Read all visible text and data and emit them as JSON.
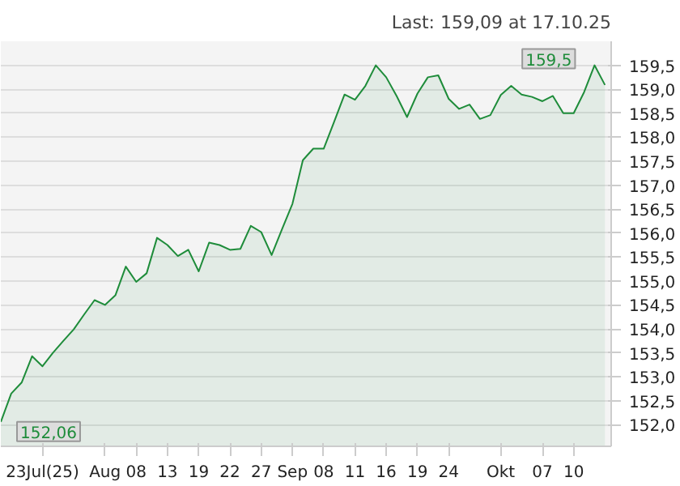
{
  "chart_data": {
    "type": "area",
    "title": "Last: 159,09 at 17.10.25",
    "categories": [
      null,
      null,
      null,
      null,
      "23Jul(25)",
      null,
      null,
      null,
      null,
      null,
      "Aug",
      null,
      null,
      "08",
      null,
      null,
      "13",
      null,
      null,
      "19",
      null,
      null,
      "22",
      null,
      null,
      "27",
      null,
      null,
      "Sep",
      null,
      null,
      "08",
      null,
      null,
      "11",
      null,
      null,
      "16",
      null,
      null,
      "19",
      null,
      null,
      "24",
      null,
      null,
      null,
      null,
      "Okt",
      null,
      null,
      null,
      "07",
      null,
      null,
      "10",
      null,
      null,
      null
    ],
    "series": [
      {
        "color": "#1e8c3a",
        "values": [
          152.06,
          152.65,
          152.88,
          153.43,
          153.22,
          153.5,
          153.75,
          153.99,
          154.3,
          154.6,
          154.5,
          154.7,
          155.3,
          154.98,
          155.16,
          155.9,
          155.75,
          155.52,
          155.65,
          155.2,
          155.8,
          155.75,
          155.65,
          155.67,
          156.15,
          156.02,
          155.54,
          156.08,
          156.61,
          157.52,
          157.76,
          157.76,
          158.32,
          158.89,
          158.78,
          159.07,
          159.5,
          159.25,
          158.86,
          158.42,
          158.91,
          159.25,
          159.29,
          158.8,
          158.59,
          158.68,
          158.38,
          158.46,
          158.88,
          159.07,
          158.89,
          158.84,
          158.75,
          158.86,
          158.5,
          158.5,
          158.94,
          159.5,
          159.09
        ]
      }
    ],
    "ylim": [
      151.55,
      160.0
    ],
    "yticks": [
      {
        "value": 152,
        "label": "152,0"
      },
      {
        "value": 152.5,
        "label": "152,5"
      },
      {
        "value": 153,
        "label": "153,0"
      },
      {
        "value": 153.5,
        "label": "153,5"
      },
      {
        "value": 154,
        "label": "154,0"
      },
      {
        "value": 154.5,
        "label": "154,5"
      },
      {
        "value": 155,
        "label": "155,0"
      },
      {
        "value": 155.5,
        "label": "155,5"
      },
      {
        "value": 156,
        "label": "156,0"
      },
      {
        "value": 156.5,
        "label": "156,5"
      },
      {
        "value": 157,
        "label": "157,0"
      },
      {
        "value": 157.5,
        "label": "157,5"
      },
      {
        "value": 158,
        "label": "158,0"
      },
      {
        "value": 158.5,
        "label": "158,5"
      },
      {
        "value": 159,
        "label": "159,0"
      },
      {
        "value": 159.5,
        "label": "159,5"
      }
    ],
    "grid": "y",
    "annotations": [
      "159,5",
      "152,06"
    ]
  }
}
